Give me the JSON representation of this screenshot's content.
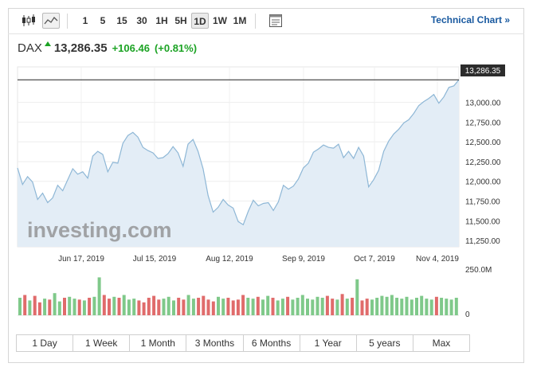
{
  "toolbar": {
    "candles_icon": "candlestick-chart-icon",
    "line_icon": "line-chart-icon",
    "timeframes": [
      "1",
      "5",
      "15",
      "30",
      "1H",
      "5H",
      "1D",
      "1W",
      "1M"
    ],
    "active_timeframe": "1D",
    "settings_icon": "chart-settings-icon",
    "technical_link": "Technical Chart »"
  },
  "quote": {
    "symbol": "DAX",
    "last": "13,286.35",
    "change": "+106.46",
    "change_pct": "(+0.81%)",
    "direction": "up",
    "up_color": "#1ca324"
  },
  "chart": {
    "watermark": "investing.com",
    "price_tag": "13,286.35"
  },
  "chart_data": {
    "type": "area",
    "x_tick_labels": [
      "Jun 17, 2019",
      "Jul 15, 2019",
      "Aug 12, 2019",
      "Sep 9, 2019",
      "Oct 7, 2019",
      "Nov 4, 2019"
    ],
    "y_tick_labels": [
      "13,000.00",
      "12,750.00",
      "12,500.00",
      "12,250.00",
      "12,000.00",
      "11,750.00",
      "11,500.00",
      "11,250.00"
    ],
    "ylim": [
      11170,
      13450
    ],
    "last_value": 13286.35,
    "values": [
      12170,
      11960,
      12060,
      11990,
      11770,
      11850,
      11730,
      11790,
      11950,
      11880,
      12020,
      12160,
      12090,
      12120,
      12040,
      12320,
      12380,
      12340,
      12120,
      12240,
      12230,
      12480,
      12580,
      12620,
      12560,
      12430,
      12390,
      12360,
      12290,
      12300,
      12350,
      12440,
      12360,
      12190,
      12470,
      12530,
      12380,
      12160,
      11820,
      11610,
      11670,
      11770,
      11700,
      11660,
      11490,
      11450,
      11620,
      11760,
      11690,
      11720,
      11730,
      11630,
      11740,
      11950,
      11900,
      11940,
      12030,
      12170,
      12230,
      12370,
      12410,
      12460,
      12430,
      12420,
      12470,
      12300,
      12380,
      12290,
      12430,
      12320,
      11930,
      12020,
      12140,
      12380,
      12510,
      12600,
      12660,
      12740,
      12780,
      12860,
      12960,
      13010,
      13050,
      13100,
      12990,
      13070,
      13190,
      13210,
      13286.35
    ],
    "volume_label": "250.0M",
    "volume_zero_label": "0",
    "volume_max": 250,
    "volumes": [
      95,
      110,
      80,
      105,
      70,
      90,
      85,
      120,
      75,
      95,
      100,
      90,
      85,
      80,
      95,
      100,
      205,
      110,
      90,
      100,
      95,
      110,
      85,
      90,
      80,
      70,
      95,
      105,
      85,
      90,
      100,
      80,
      95,
      85,
      110,
      90,
      95,
      105,
      85,
      75,
      100,
      90,
      95,
      80,
      85,
      110,
      95,
      90,
      100,
      85,
      105,
      95,
      80,
      90,
      100,
      85,
      95,
      110,
      90,
      85,
      100,
      95,
      105,
      90,
      85,
      115,
      90,
      95,
      195,
      80,
      90,
      85,
      95,
      105,
      100,
      110,
      95,
      90,
      100,
      85,
      95,
      105,
      90,
      85,
      100,
      95,
      90,
      85,
      95
    ],
    "volume_colors": [
      "#e06b6b",
      "#7fc98a"
    ],
    "line_color": "#8eb7d6",
    "fill_color": "#e3edf6"
  },
  "ranges": [
    "1 Day",
    "1 Week",
    "1 Month",
    "3 Months",
    "6 Months",
    "1 Year",
    "5 years",
    "Max"
  ]
}
